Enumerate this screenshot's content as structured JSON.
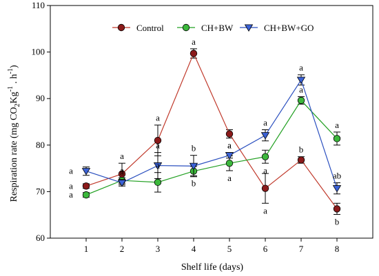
{
  "chart_data": {
    "type": "line",
    "title": "",
    "xlabel": "Shelf life (days)",
    "ylabel_main": "Respiration rate (mg CO",
    "ylabel_sub": "2",
    "ylabel_unit": "Kg",
    "ylabel_sup1": "-1",
    "ylabel_mid": " . h",
    "ylabel_sup2": "-1",
    "ylabel_close": ")",
    "x": [
      1,
      2,
      3,
      4,
      5,
      6,
      7,
      8
    ],
    "xlim": [
      0,
      9
    ],
    "ylim": [
      60,
      110
    ],
    "xticks": [
      "1",
      "2",
      "3",
      "4",
      "5",
      "6",
      "7",
      "8"
    ],
    "yticks": [
      "60",
      "70",
      "80",
      "90",
      "100",
      "110"
    ],
    "grid": false,
    "legend_position": "top",
    "series": [
      {
        "name": "Control",
        "color": "#c0392b",
        "marker_fill": "#8b1a1a",
        "marker": "circle",
        "values": [
          71.2,
          73.8,
          81.0,
          99.7,
          82.4,
          70.7,
          76.8,
          66.3
        ],
        "errors": [
          0.5,
          2.3,
          3.3,
          1.0,
          0.9,
          3.2,
          0.7,
          1.2
        ],
        "labels": [
          "a",
          "a",
          "a",
          "a",
          "a",
          "a",
          "b",
          "b"
        ]
      },
      {
        "name": "CH+BW",
        "color": "#22a022",
        "marker_fill": "#3cb83c",
        "marker": "circle",
        "values": [
          69.3,
          72.4,
          72.0,
          74.4,
          76.1,
          77.5,
          89.6,
          81.4
        ],
        "errors": [
          0.5,
          0.6,
          2.1,
          1.0,
          1.6,
          1.4,
          0.8,
          1.4
        ],
        "labels": [
          "a",
          "a",
          "a",
          "b",
          "a",
          "a",
          "a",
          "a"
        ]
      },
      {
        "name": "CH+BW+GO",
        "color": "#2a4fbf",
        "marker_fill": "#3b62d6",
        "marker": "triangle-down",
        "values": [
          74.4,
          71.9,
          75.6,
          75.5,
          77.8,
          82.1,
          94.0,
          70.7
        ],
        "errors": [
          0.9,
          0.7,
          2.8,
          2.3,
          0.6,
          1.2,
          1.1,
          1.2
        ],
        "labels": [
          "a",
          "a",
          "a",
          "b",
          "a",
          "a",
          "a",
          "ab"
        ]
      }
    ]
  }
}
